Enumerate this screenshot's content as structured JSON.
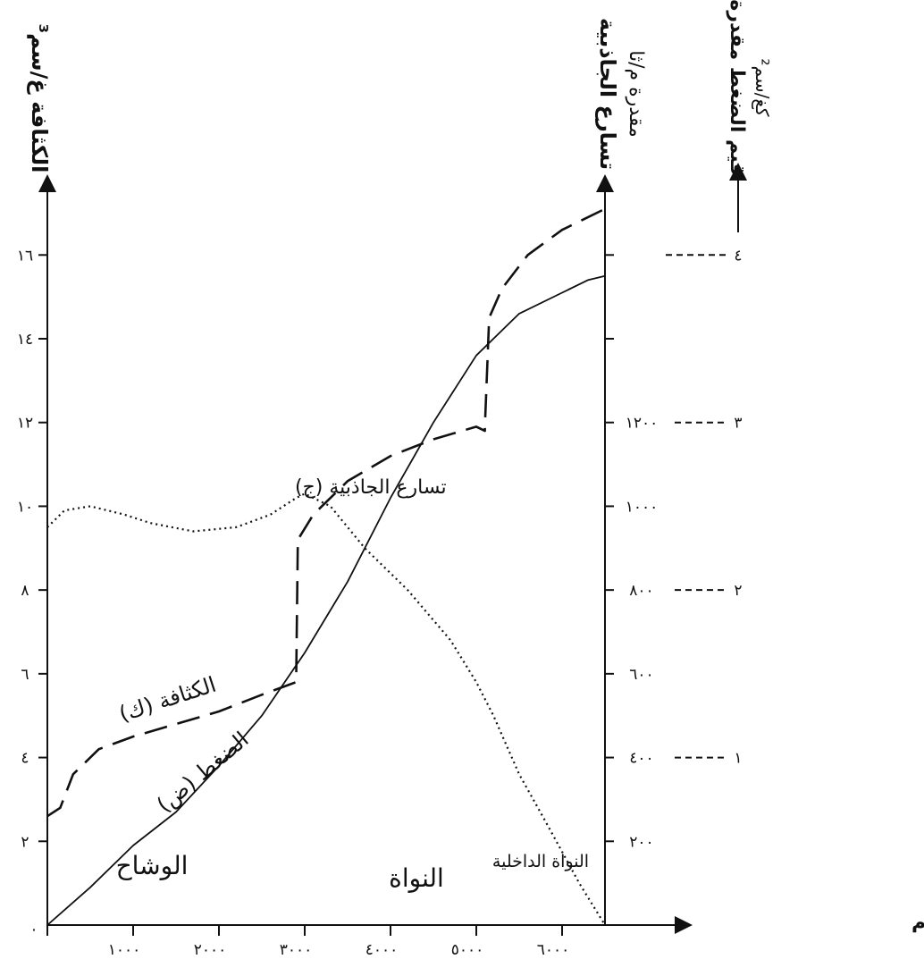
{
  "chart_data": {
    "type": "line",
    "xlabel": "الأعمال مقدرة بالكم",
    "x_ticks": [
      {
        "value": 0,
        "label": "٠"
      },
      {
        "value": 1000,
        "label": "١٠٠٠"
      },
      {
        "value": 2000,
        "label": "٢٠٠٠"
      },
      {
        "value": 3000,
        "label": "٣٠٠٠"
      },
      {
        "value": 4000,
        "label": "٤٠٠٠"
      },
      {
        "value": 5000,
        "label": "٥٠٠٠"
      },
      {
        "value": 6000,
        "label": "٦٠٠٠"
      }
    ],
    "xlim": [
      0,
      6500
    ],
    "y_left": {
      "label": "الكثافة غ/سم³",
      "lim": [
        0,
        17.5
      ],
      "ticks": [
        {
          "value": 2,
          "label": "٢"
        },
        {
          "value": 4,
          "label": "٤"
        },
        {
          "value": 6,
          "label": "٦"
        },
        {
          "value": 8,
          "label": "٨"
        },
        {
          "value": 10,
          "label": "١٠"
        },
        {
          "value": 12,
          "label": "١٢"
        },
        {
          "value": 14,
          "label": "١٤"
        },
        {
          "value": 16,
          "label": "١٦"
        }
      ]
    },
    "y_right": {
      "label_line1": "تسارع الجاذبية",
      "label_line2": "مقدرة م/ثا",
      "lim": [
        0,
        1750
      ],
      "ticks": [
        {
          "value": 200,
          "label": "٢٠٠"
        },
        {
          "value": 400,
          "label": "٤٠٠"
        },
        {
          "value": 600,
          "label": "٦٠٠"
        },
        {
          "value": 800,
          "label": "٨٠٠"
        },
        {
          "value": 1000,
          "label": "١٠٠٠"
        },
        {
          "value": 1200,
          "label": "١٢٠٠"
        },
        {
          "value": 1400,
          "label": ""
        },
        {
          "value": 1600,
          "label": ""
        }
      ]
    },
    "pressure_axis": {
      "label_line1": "قيم الضغط مقدرة",
      "label_line2": "كغ/سم²",
      "ticks": [
        {
          "value": 1,
          "label": "١",
          "at_left": 4
        },
        {
          "value": 2,
          "label": "٢",
          "at_left": 8
        },
        {
          "value": 3,
          "label": "٣",
          "at_left": 12
        },
        {
          "value": 4,
          "label": "٤",
          "at_left": 16
        }
      ]
    },
    "series": [
      {
        "name": "الكثافة (ك)",
        "style": "dashed",
        "axis": "left",
        "x": [
          0,
          150,
          300,
          600,
          1000,
          1500,
          2000,
          2500,
          2900,
          2900,
          2920,
          3100,
          3500,
          4000,
          4500,
          5000,
          5100,
          5100,
          5150,
          5300,
          5600,
          6000,
          6500
        ],
        "y": [
          2.6,
          2.8,
          3.6,
          4.2,
          4.5,
          4.8,
          5.1,
          5.5,
          5.8,
          5.8,
          9.2,
          9.8,
          10.6,
          11.2,
          11.6,
          11.9,
          11.8,
          11.9,
          14.5,
          15.2,
          16.0,
          16.6,
          17.1
        ]
      },
      {
        "name": "الضغط (ض)",
        "style": "solid",
        "axis": "left",
        "x": [
          0,
          500,
          1000,
          1500,
          2000,
          2500,
          3000,
          3500,
          4000,
          4500,
          5000,
          5500,
          6000,
          6300,
          6500
        ],
        "y": [
          0,
          0.9,
          1.9,
          2.7,
          3.8,
          5.0,
          6.5,
          8.2,
          10.2,
          12.0,
          13.6,
          14.6,
          15.1,
          15.4,
          15.5
        ]
      },
      {
        "name": "تسارع الجاذبية (ج)",
        "style": "dotted",
        "axis": "right",
        "x": [
          0,
          200,
          500,
          900,
          1200,
          1700,
          2200,
          2600,
          2900,
          3000,
          3300,
          3700,
          4200,
          4700,
          5000,
          5200,
          5500,
          5800,
          6200,
          6500
        ],
        "y": [
          950,
          990,
          1000,
          980,
          960,
          940,
          950,
          980,
          1020,
          1030,
          1000,
          900,
          800,
          680,
          580,
          500,
          360,
          250,
          100,
          0
        ]
      }
    ],
    "annotations": {
      "density": "الكثافة (ك)",
      "pressure": "الضغط (ض)",
      "gravity": "تسارع الجاذبية (ج)",
      "mantle": "الوشاح",
      "core": "النواة",
      "inner_core": "النواة الداخلية"
    },
    "grid": false
  }
}
